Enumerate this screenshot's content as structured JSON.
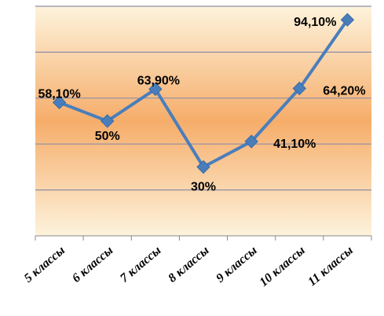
{
  "chart_data": {
    "type": "line",
    "categories": [
      "5 классы",
      "6 классы",
      "7 классы",
      "8 классы",
      "9 классы",
      "10 классы",
      "11 классы"
    ],
    "values": [
      58.1,
      50,
      63.9,
      30,
      41.1,
      64.2,
      94.1
    ],
    "value_labels": [
      "58,10%",
      "50%",
      "63,90%",
      "30%",
      "41,10%",
      "64,20%",
      "94,10%"
    ],
    "ylim": [
      0,
      100
    ],
    "grid": true,
    "line_color": "#4a7ebb",
    "plot_gradient": [
      "#fdf3dc",
      "#f6ad6a",
      "#fdf3dc"
    ],
    "grid_color": "#8e8ea8"
  }
}
